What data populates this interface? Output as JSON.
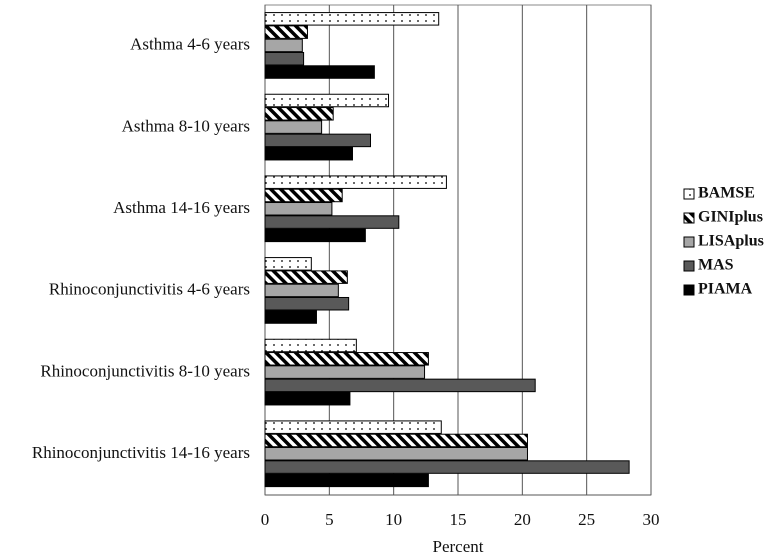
{
  "chart_data": {
    "type": "barh",
    "x_label": "Percent",
    "categories": [
      "Asthma 4-6 years",
      "Asthma 8-10 years",
      "Asthma 14-16 years",
      "Rhinoconjunctivitis 4-6 years",
      "Rhinoconjunctivitis 8-10 years",
      "Rhinoconjunctivitis 14-16 years"
    ],
    "series": [
      {
        "name": "BAMSE",
        "color": "#ffffff",
        "pattern": "dots",
        "values": [
          13.5,
          9.6,
          14.1,
          3.6,
          7.1,
          13.7
        ]
      },
      {
        "name": "GINIplus",
        "color": "#ffffff",
        "pattern": "hatch",
        "values": [
          3.3,
          5.3,
          6.0,
          6.4,
          12.7,
          20.4
        ]
      },
      {
        "name": "LISAplus",
        "color": "#a6a6a6",
        "values": [
          2.9,
          4.4,
          5.2,
          5.7,
          12.4,
          20.4
        ]
      },
      {
        "name": "MAS",
        "color": "#595959",
        "values": [
          3.0,
          8.2,
          10.4,
          6.5,
          21.0,
          28.3
        ]
      },
      {
        "name": "PIAMA",
        "color": "#000000",
        "values": [
          8.5,
          6.8,
          7.8,
          4.0,
          6.6,
          12.7
        ]
      }
    ],
    "xlim": [
      0,
      30
    ],
    "xticks": [
      0,
      5,
      10,
      15,
      20,
      25,
      30
    ],
    "grid": true,
    "legend": "right"
  }
}
